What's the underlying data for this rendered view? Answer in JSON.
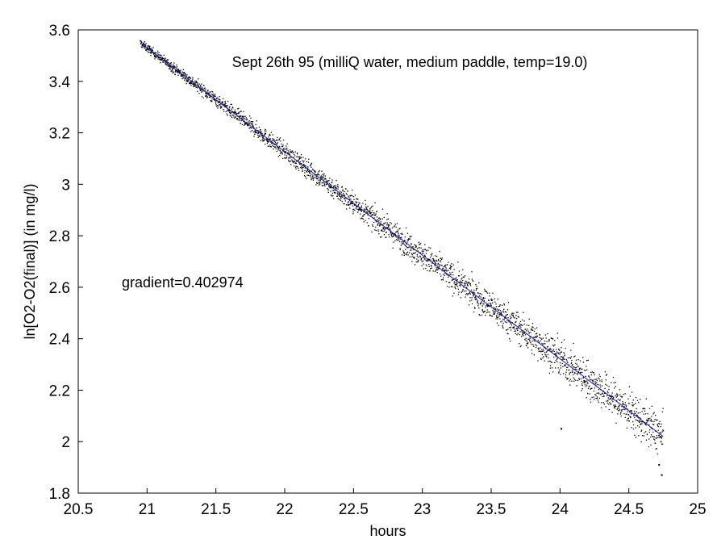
{
  "chart_data": {
    "type": "scatter",
    "title": "",
    "xlabel": "hours",
    "ylabel": "ln[O2-O2(final)] (in mg/l)",
    "xlim": [
      20.5,
      25
    ],
    "ylim": [
      1.8,
      3.6
    ],
    "x_ticks": [
      20.5,
      21,
      21.5,
      22,
      22.5,
      23,
      23.5,
      24,
      24.5,
      25
    ],
    "y_ticks": [
      1.8,
      2,
      2.2,
      2.4,
      2.6,
      2.8,
      3,
      3.2,
      3.4,
      3.6
    ],
    "x_tick_labels": [
      "20.5",
      "21",
      "21.5",
      "22",
      "22.5",
      "23",
      "23.5",
      "24",
      "24.5",
      "25"
    ],
    "y_tick_labels": [
      "1.8",
      "2",
      "2.2",
      "2.4",
      "2.6",
      "2.8",
      "3",
      "3.2",
      "3.4",
      "3.6"
    ],
    "grid": false,
    "annotations": [
      {
        "text": "Sept 26th 95 (milliQ water, medium paddle, temp=19.0)"
      },
      {
        "text": "gradient=0.402974"
      }
    ],
    "fit_line": {
      "color": "#1a1aa6",
      "points": [
        {
          "x": 20.95,
          "y": 3.55
        },
        {
          "x": 24.75,
          "y": 2.02
        }
      ]
    },
    "scatter_series": {
      "color": "#000000",
      "x_start": 20.95,
      "x_end": 24.75,
      "y_start": 3.55,
      "y_end": 2.02,
      "spread_start": 0.015,
      "spread_end": 0.08,
      "outliers": [
        {
          "x": 24.01,
          "y": 2.05
        },
        {
          "x": 24.74,
          "y": 1.87
        },
        {
          "x": 24.72,
          "y": 1.91
        }
      ]
    }
  }
}
